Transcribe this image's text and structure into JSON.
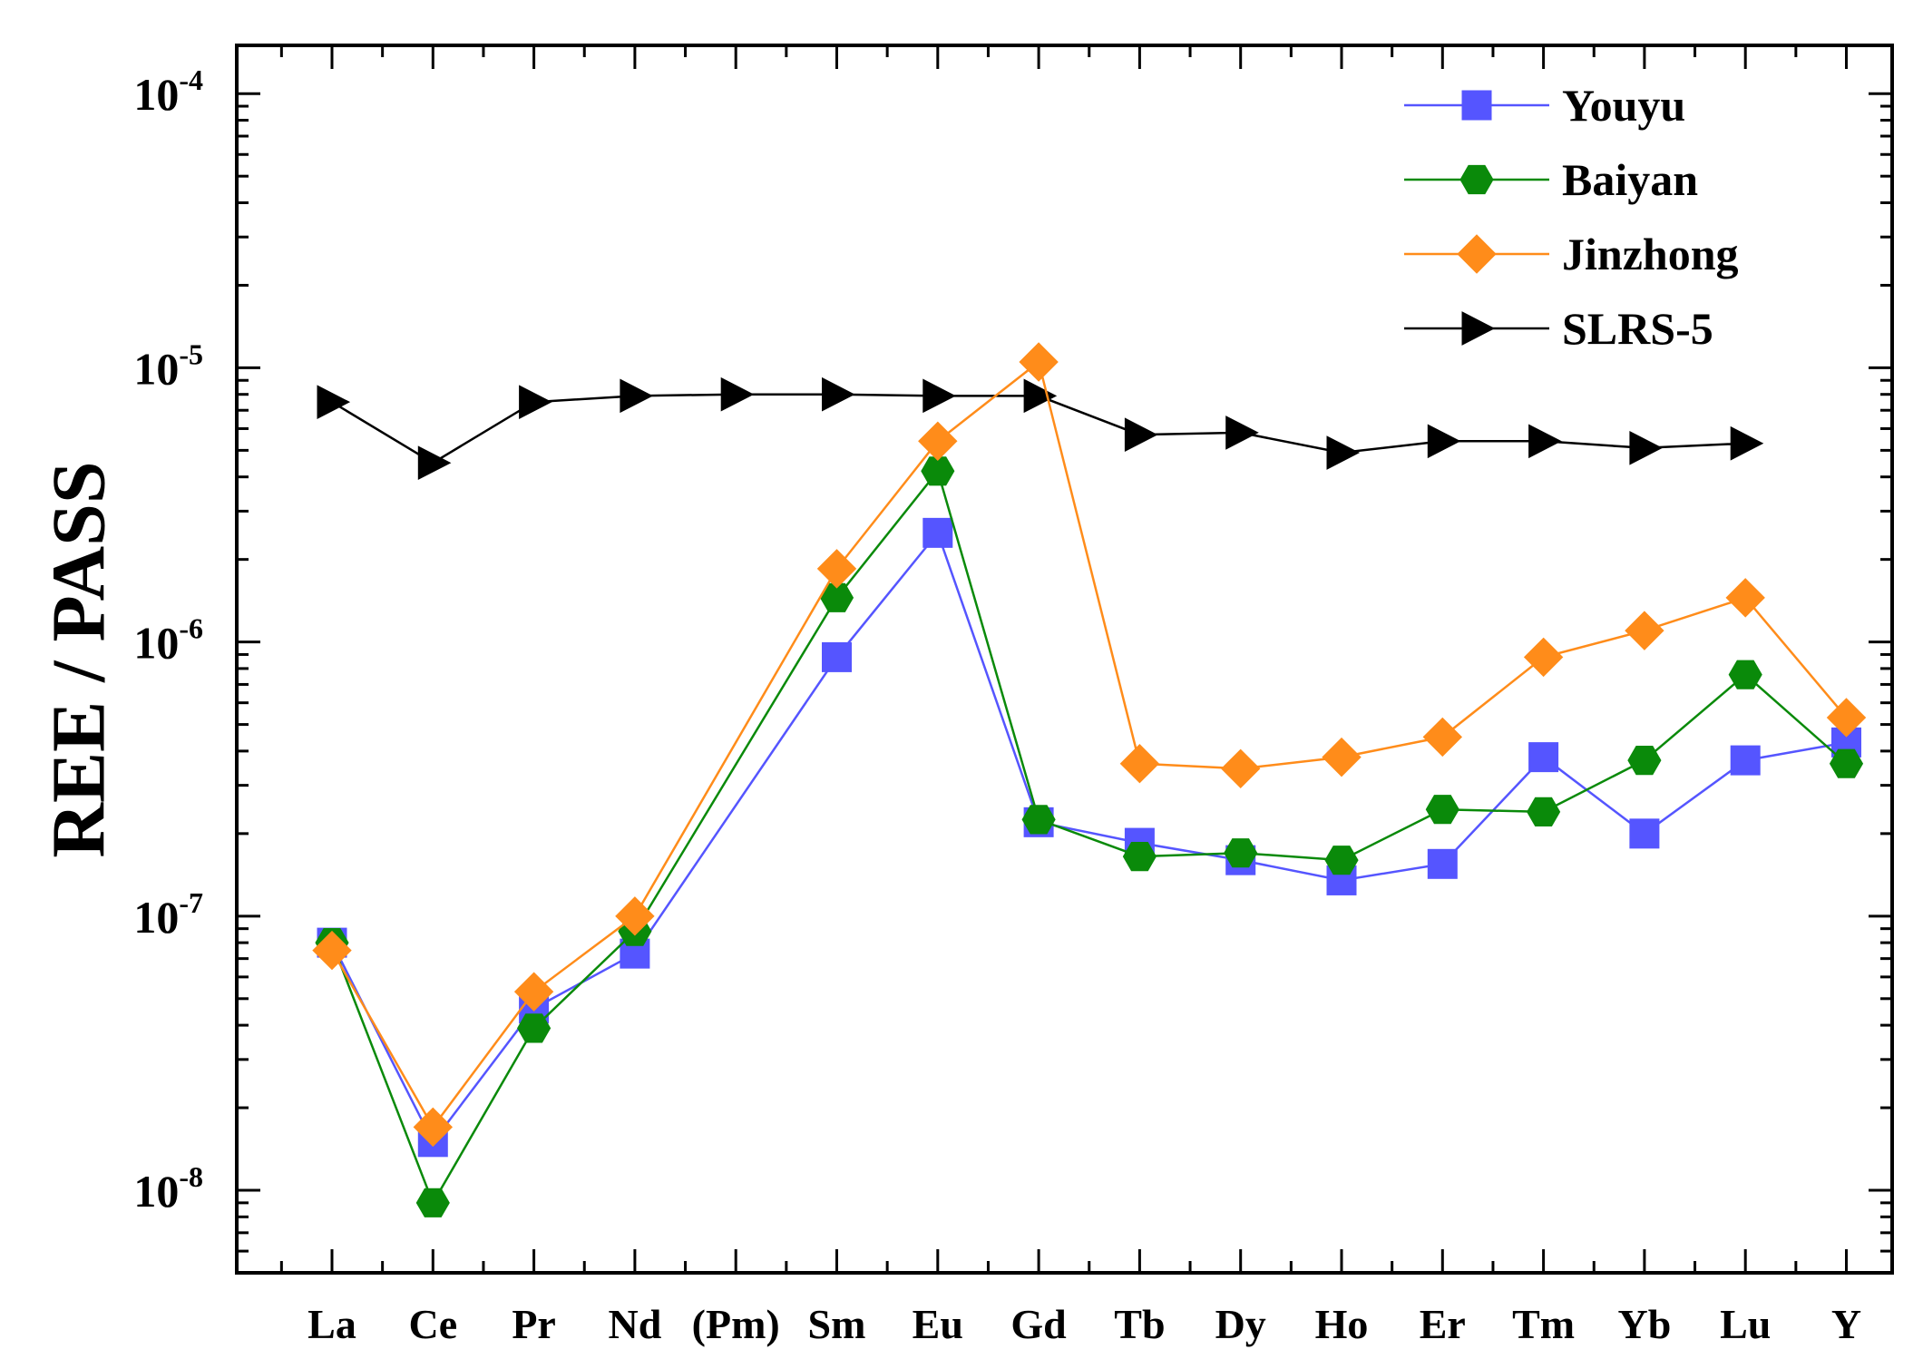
{
  "chart_data": {
    "type": "line",
    "title": "",
    "xlabel": "",
    "ylabel": "REE / PASS",
    "yscale": "log",
    "ylim": [
      5e-09,
      0.00015
    ],
    "yticks": [
      {
        "exp": "-8"
      },
      {
        "exp": "-7"
      },
      {
        "exp": "-6"
      },
      {
        "exp": "-5"
      },
      {
        "exp": "-4"
      }
    ],
    "tick_base": "10",
    "categories": [
      "La",
      "Ce",
      "Pr",
      "Nd",
      "(Pm)",
      "Sm",
      "Eu",
      "Gd",
      "Tb",
      "Dy",
      "Ho",
      "Er",
      "Tm",
      "Yb",
      "Lu",
      "Y"
    ],
    "legend_position": "top-right",
    "series": [
      {
        "name": "Youyu",
        "color": "#5555ff",
        "marker": "square",
        "values": [
          8e-08,
          1.5e-08,
          4.6e-08,
          7.3e-08,
          null,
          8.8e-07,
          2.5e-06,
          2.2e-07,
          1.85e-07,
          1.6e-07,
          1.35e-07,
          1.55e-07,
          3.8e-07,
          2e-07,
          3.7e-07,
          4.3e-07
        ]
      },
      {
        "name": "Baiyan",
        "color": "#0a8a0a",
        "marker": "hexagon",
        "values": [
          8e-08,
          9e-09,
          3.9e-08,
          8.8e-08,
          null,
          1.45e-06,
          4.2e-06,
          2.25e-07,
          1.65e-07,
          1.7e-07,
          1.6e-07,
          2.45e-07,
          2.4e-07,
          3.7e-07,
          7.6e-07,
          3.6e-07
        ]
      },
      {
        "name": "Jinzhong",
        "color": "#ff8c1a",
        "marker": "diamond",
        "values": [
          7.5e-08,
          1.7e-08,
          5.3e-08,
          1e-07,
          null,
          1.85e-06,
          5.4e-06,
          1.05e-05,
          3.6e-07,
          3.45e-07,
          3.8e-07,
          4.5e-07,
          8.8e-07,
          1.1e-06,
          1.45e-06,
          5.3e-07
        ]
      },
      {
        "name": "SLRS-5",
        "color": "#000000",
        "marker": "triangle-right",
        "values": [
          7.5e-06,
          4.5e-06,
          7.5e-06,
          7.9e-06,
          8e-06,
          8e-06,
          7.9e-06,
          7.9e-06,
          5.7e-06,
          5.8e-06,
          4.9e-06,
          5.4e-06,
          5.4e-06,
          5.1e-06,
          5.3e-06,
          null
        ]
      }
    ]
  }
}
